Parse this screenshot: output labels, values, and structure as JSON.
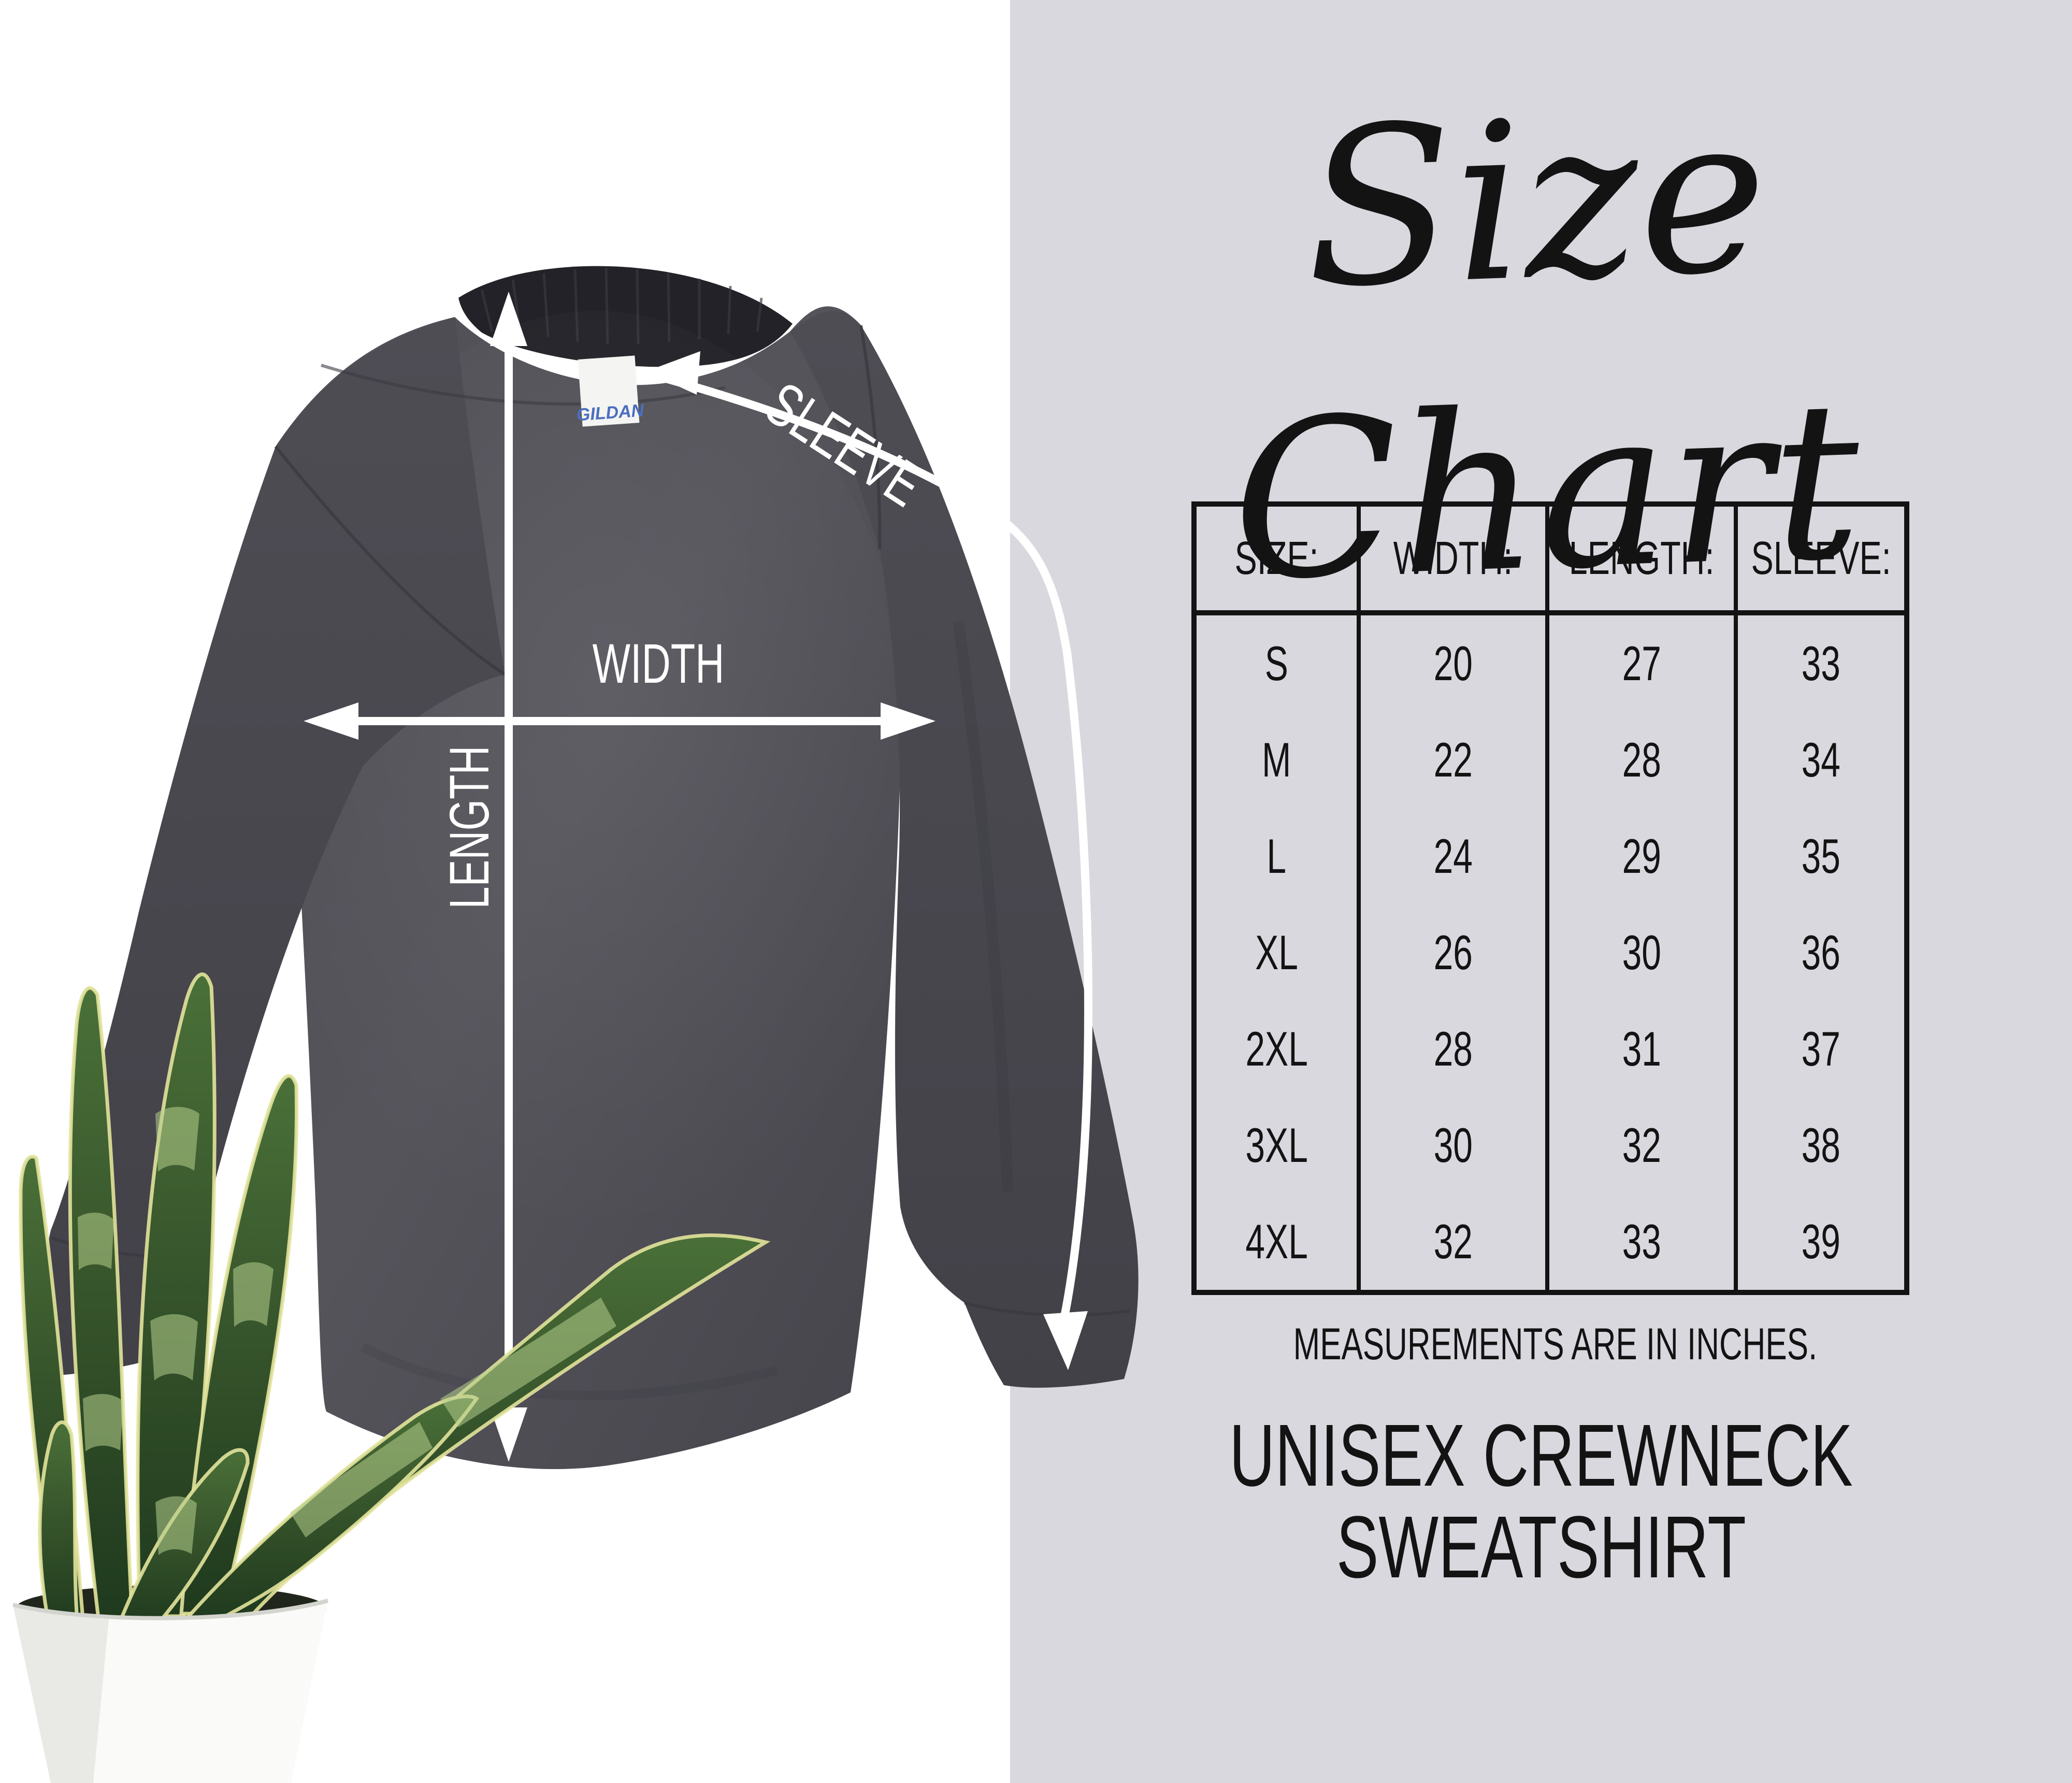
{
  "title": "Size Chart",
  "note": "MEASUREMENTS ARE IN INCHES.",
  "product_line1": "UNISEX CREWNECK",
  "product_line2": "SWEATSHIRT",
  "diagram": {
    "width_label": "WIDTH",
    "length_label": "LENGTH",
    "sleeve_label": "SLEEVE",
    "tag_label": "GILDAN"
  },
  "size_table": {
    "headers": [
      "SIZE:",
      "WIDTH:",
      "LENGTH:",
      "SLEEVE:"
    ],
    "rows": [
      [
        "S",
        "20",
        "27",
        "33"
      ],
      [
        "M",
        "22",
        "28",
        "34"
      ],
      [
        "L",
        "24",
        "29",
        "35"
      ],
      [
        "XL",
        "26",
        "30",
        "36"
      ],
      [
        "2XL",
        "28",
        "31",
        "37"
      ],
      [
        "3XL",
        "30",
        "32",
        "38"
      ],
      [
        "4XL",
        "32",
        "33",
        "39"
      ]
    ]
  },
  "chart_data": {
    "type": "table",
    "title": "Size Chart",
    "columns": [
      "SIZE:",
      "WIDTH:",
      "LENGTH:",
      "SLEEVE:"
    ],
    "rows": [
      [
        "S",
        20,
        27,
        33
      ],
      [
        "M",
        22,
        28,
        34
      ],
      [
        "L",
        24,
        29,
        35
      ],
      [
        "XL",
        26,
        30,
        36
      ],
      [
        "2XL",
        28,
        31,
        37
      ],
      [
        "3XL",
        30,
        32,
        38
      ],
      [
        "4XL",
        32,
        33,
        39
      ]
    ],
    "units": "inches",
    "product": "Unisex Crewneck Sweatshirt"
  },
  "colors": {
    "panel_bg": "#d9d8df",
    "ink": "#141313",
    "fabric": "#55545b",
    "fabric_dark": "#47464d",
    "collar": "#232228",
    "arrow": "#ffffff",
    "leaf_dark": "#24421f",
    "leaf_mid": "#44693a",
    "leaf_light": "#b7cf8d",
    "leaf_edge": "#e2e39b",
    "pot": "#fafaf8",
    "tag_blue": "#4a6fc0"
  }
}
